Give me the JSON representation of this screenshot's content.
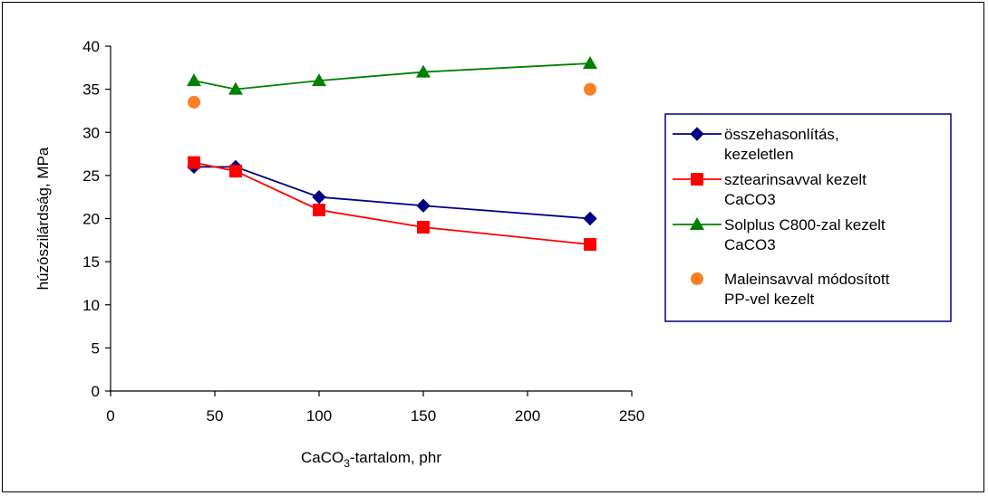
{
  "chart_data": {
    "type": "line",
    "title": "",
    "xlabel_main": "CaCO",
    "xlabel_sub": "3",
    "xlabel_rest": "-tartalom, phr",
    "ylabel": "húzószilárdság, MPa",
    "xlim": [
      0,
      250
    ],
    "ylim": [
      0,
      40
    ],
    "xticks": [
      "0",
      "50",
      "100",
      "150",
      "200",
      "250"
    ],
    "yticks": [
      "0",
      "5",
      "10",
      "15",
      "20",
      "25",
      "30",
      "35",
      "40"
    ],
    "grid": false,
    "legend_position": "right",
    "series": [
      {
        "name_lines": [
          "összehasonlítás,",
          "kezeletlen"
        ],
        "color": "#000080",
        "marker": "diamond",
        "line": true,
        "x": [
          40,
          60,
          100,
          150,
          230
        ],
        "y": [
          26,
          26,
          22.5,
          21.5,
          20
        ]
      },
      {
        "name_lines": [
          "sztearinsavval kezelt",
          "CaCO3"
        ],
        "color": "#ff0000",
        "marker": "square",
        "line": true,
        "x": [
          40,
          60,
          100,
          150,
          230
        ],
        "y": [
          26.5,
          25.5,
          21,
          19,
          17
        ]
      },
      {
        "name_lines": [
          "Solplus C800-zal kezelt",
          "CaCO3"
        ],
        "color": "#008000",
        "marker": "triangle",
        "line": true,
        "x": [
          40,
          60,
          100,
          150,
          230
        ],
        "y": [
          36,
          35,
          36,
          37,
          38
        ]
      },
      {
        "name_lines": [
          "Maleinsavval módosított",
          "PP-vel kezelt"
        ],
        "color": "#ff7f27",
        "marker": "circle",
        "line": false,
        "x": [
          40,
          230
        ],
        "y": [
          33.5,
          35
        ]
      }
    ]
  }
}
